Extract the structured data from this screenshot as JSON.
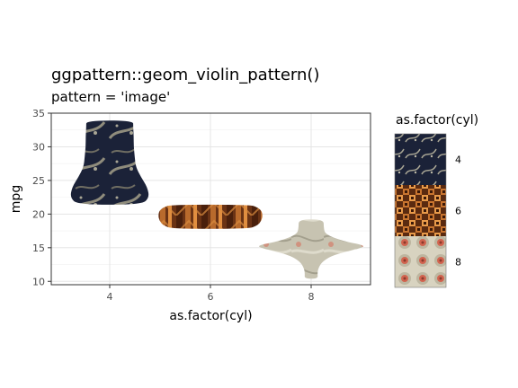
{
  "chart_data": {
    "type": "violin",
    "title": "ggpattern::geom_violin_pattern()",
    "subtitle": "pattern = 'image'",
    "xlabel": "as.factor(cyl)",
    "ylabel": "mpg",
    "categories": [
      "4",
      "6",
      "8"
    ],
    "ylim": [
      9.5,
      35
    ],
    "yticks": [
      10,
      15,
      20,
      25,
      30,
      35
    ],
    "grid": true,
    "violins": [
      {
        "category": "4",
        "ymin": 21.4,
        "ymax": 33.9,
        "profile": [
          [
            21.4,
            0.62
          ],
          [
            22.5,
            0.76
          ],
          [
            24.0,
            0.72
          ],
          [
            25.5,
            0.6
          ],
          [
            27.0,
            0.5
          ],
          [
            28.5,
            0.48
          ],
          [
            30.0,
            0.46
          ],
          [
            31.5,
            0.46
          ],
          [
            33.0,
            0.45
          ],
          [
            33.9,
            0.45
          ]
        ],
        "pattern_color": "#1b2238"
      },
      {
        "category": "6",
        "ymin": 17.8,
        "ymax": 21.4,
        "profile": [
          [
            17.8,
            0.72
          ],
          [
            18.3,
            0.9
          ],
          [
            19.0,
            0.98
          ],
          [
            19.8,
            1.0
          ],
          [
            20.5,
            0.98
          ],
          [
            21.0,
            0.9
          ],
          [
            21.4,
            0.76
          ]
        ],
        "pattern_color": "#6a3315"
      },
      {
        "category": "8",
        "ymin": 10.4,
        "ymax": 19.2,
        "profile": [
          [
            10.4,
            0.13
          ],
          [
            11.2,
            0.12
          ],
          [
            12.0,
            0.14
          ],
          [
            13.0,
            0.22
          ],
          [
            14.0,
            0.45
          ],
          [
            15.0,
            1.0
          ],
          [
            15.4,
            1.0
          ],
          [
            16.0,
            0.6
          ],
          [
            17.0,
            0.27
          ],
          [
            18.0,
            0.24
          ],
          [
            19.2,
            0.24
          ]
        ],
        "pattern_color": "#c7c3b1"
      }
    ],
    "legend": {
      "title": "as.factor(cyl)",
      "position": "right",
      "entries": [
        {
          "label": "4",
          "color": "#1b2238"
        },
        {
          "label": "6",
          "color": "#6a3315"
        },
        {
          "label": "8",
          "color": "#c7c3b1"
        }
      ]
    }
  }
}
